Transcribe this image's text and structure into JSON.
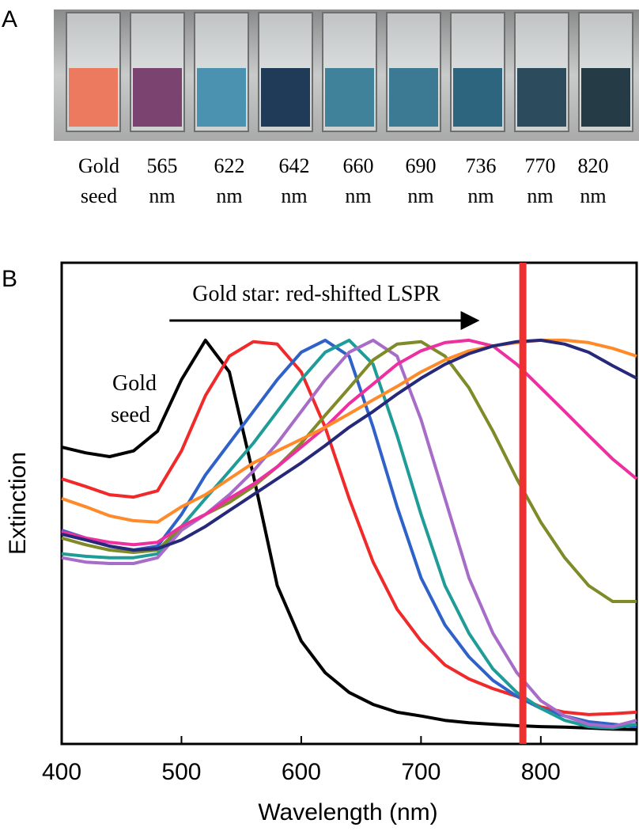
{
  "panel_a": {
    "label": "A",
    "cuvettes": [
      {
        "line1": "Gold",
        "line2": "seed",
        "color": "#ec7a5e"
      },
      {
        "line1": "565",
        "line2": "nm",
        "color": "#7b4470"
      },
      {
        "line1": "622",
        "line2": "nm",
        "color": "#4b92b0"
      },
      {
        "line1": "642",
        "line2": "nm",
        "color": "#1f3b58"
      },
      {
        "line1": "660",
        "line2": "nm",
        "color": "#3f8299"
      },
      {
        "line1": "690",
        "line2": "nm",
        "color": "#3b7a92"
      },
      {
        "line1": "736",
        "line2": "nm",
        "color": "#2d647e"
      },
      {
        "line1": "770",
        "line2": "nm",
        "color": "#2c4b5c"
      },
      {
        "line1": "820",
        "line2": "nm",
        "color": "#253b46"
      }
    ]
  },
  "chart_data": {
    "type": "line",
    "panel_label": "B",
    "x_label": "Wavelength (nm)",
    "y_label": "Extinction",
    "annotations": [
      {
        "text": "Gold star: red-shifted LSPR",
        "arrow": [
          490,
          745
        ]
      },
      {
        "text": "Gold"
      },
      {
        "text": "seed"
      }
    ],
    "vline": {
      "value": 785,
      "color": "#ee3030"
    },
    "xlim": [
      400,
      880
    ],
    "ylim": [
      0,
      1
    ],
    "xticks": [
      400,
      500,
      600,
      700,
      800
    ],
    "x": [
      400,
      420,
      440,
      460,
      480,
      500,
      520,
      540,
      560,
      580,
      600,
      620,
      640,
      660,
      680,
      700,
      720,
      740,
      760,
      780,
      800,
      820,
      840,
      860,
      880
    ],
    "series": [
      {
        "color": "#000000",
        "values": [
          0.617,
          0.605,
          0.597,
          0.609,
          0.65,
          0.757,
          0.839,
          0.773,
          0.559,
          0.329,
          0.214,
          0.148,
          0.107,
          0.082,
          0.066,
          0.058,
          0.049,
          0.044,
          0.041,
          0.038,
          0.036,
          0.035,
          0.033,
          0.031,
          0.03
        ]
      },
      {
        "color": "#f02a2a",
        "values": [
          0.551,
          0.535,
          0.518,
          0.513,
          0.526,
          0.609,
          0.724,
          0.806,
          0.836,
          0.831,
          0.773,
          0.658,
          0.51,
          0.378,
          0.28,
          0.214,
          0.164,
          0.135,
          0.115,
          0.099,
          0.077,
          0.066,
          0.061,
          0.063,
          0.066
        ]
      },
      {
        "color": "#2f62c8",
        "values": [
          0.444,
          0.428,
          0.411,
          0.403,
          0.411,
          0.477,
          0.559,
          0.625,
          0.691,
          0.757,
          0.814,
          0.839,
          0.806,
          0.658,
          0.493,
          0.345,
          0.247,
          0.181,
          0.132,
          0.099,
          0.074,
          0.058,
          0.046,
          0.041,
          0.036
        ]
      },
      {
        "color": "#1f9c98",
        "values": [
          0.395,
          0.39,
          0.387,
          0.387,
          0.395,
          0.452,
          0.51,
          0.567,
          0.625,
          0.691,
          0.757,
          0.814,
          0.839,
          0.789,
          0.641,
          0.477,
          0.329,
          0.23,
          0.156,
          0.107,
          0.074,
          0.049,
          0.036,
          0.033,
          0.041
        ]
      },
      {
        "color": "#a66cc8",
        "values": [
          0.387,
          0.378,
          0.375,
          0.375,
          0.387,
          0.444,
          0.477,
          0.518,
          0.567,
          0.625,
          0.691,
          0.757,
          0.814,
          0.839,
          0.806,
          0.674,
          0.51,
          0.345,
          0.23,
          0.148,
          0.09,
          0.058,
          0.041,
          0.036,
          0.049
        ]
      },
      {
        "color": "#7f8a28",
        "values": [
          0.428,
          0.414,
          0.403,
          0.398,
          0.403,
          0.452,
          0.477,
          0.502,
          0.535,
          0.576,
          0.625,
          0.683,
          0.74,
          0.798,
          0.831,
          0.836,
          0.806,
          0.74,
          0.65,
          0.551,
          0.461,
          0.387,
          0.329,
          0.296,
          0.296
        ]
      },
      {
        "color": "#ee2fa0",
        "values": [
          0.441,
          0.428,
          0.419,
          0.414,
          0.419,
          0.452,
          0.477,
          0.51,
          0.54,
          0.576,
          0.617,
          0.658,
          0.707,
          0.748,
          0.789,
          0.817,
          0.834,
          0.839,
          0.827,
          0.789,
          0.74,
          0.691,
          0.641,
          0.592,
          0.551
        ]
      },
      {
        "color": "#ff8a2a",
        "values": [
          0.51,
          0.493,
          0.474,
          0.464,
          0.461,
          0.493,
          0.518,
          0.551,
          0.584,
          0.609,
          0.633,
          0.658,
          0.686,
          0.715,
          0.743,
          0.773,
          0.798,
          0.817,
          0.827,
          0.834,
          0.839,
          0.839,
          0.834,
          0.822,
          0.806
        ]
      },
      {
        "color": "#26287a",
        "values": [
          0.436,
          0.424,
          0.411,
          0.403,
          0.406,
          0.424,
          0.452,
          0.485,
          0.518,
          0.551,
          0.584,
          0.62,
          0.658,
          0.691,
          0.727,
          0.76,
          0.789,
          0.811,
          0.827,
          0.836,
          0.839,
          0.831,
          0.814,
          0.786,
          0.76
        ]
      }
    ]
  }
}
